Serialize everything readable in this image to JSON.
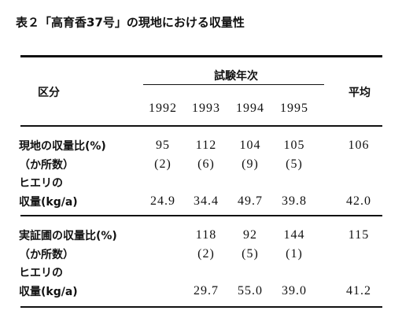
{
  "title": "表２「高育香37号」の現地における収量性",
  "table": {
    "header": {
      "category": "区分",
      "group": "試験年次",
      "years": [
        "1992",
        "1993",
        "1994",
        "1995"
      ],
      "average": "平均"
    },
    "sections": [
      {
        "rows": [
          {
            "label": "現地の収量比(%)",
            "cells": [
              "95",
              "112",
              "104",
              "105",
              "106"
            ]
          },
          {
            "label": "（か所数）",
            "cells": [
              "(2)",
              "(6)",
              "(9)",
              "(5)",
              null
            ]
          },
          {
            "label": "ヒエリの"
          },
          {
            "label": "収量(kg/a)",
            "cells": [
              "24.9",
              "34.4",
              "49.7",
              "39.8",
              "42.0"
            ]
          }
        ]
      },
      {
        "rows": [
          {
            "label": "実証圃の収量比(%)",
            "cells": [
              null,
              "118",
              "92",
              "144",
              "115"
            ]
          },
          {
            "label": "（か所数）",
            "cells": [
              null,
              "(2)",
              "(5)",
              "(1)",
              null
            ]
          },
          {
            "label": "ヒエリの"
          },
          {
            "label": "収量(kg/a)",
            "cells": [
              null,
              "29.7",
              "55.0",
              "39.0",
              "41.2"
            ]
          }
        ]
      }
    ]
  }
}
